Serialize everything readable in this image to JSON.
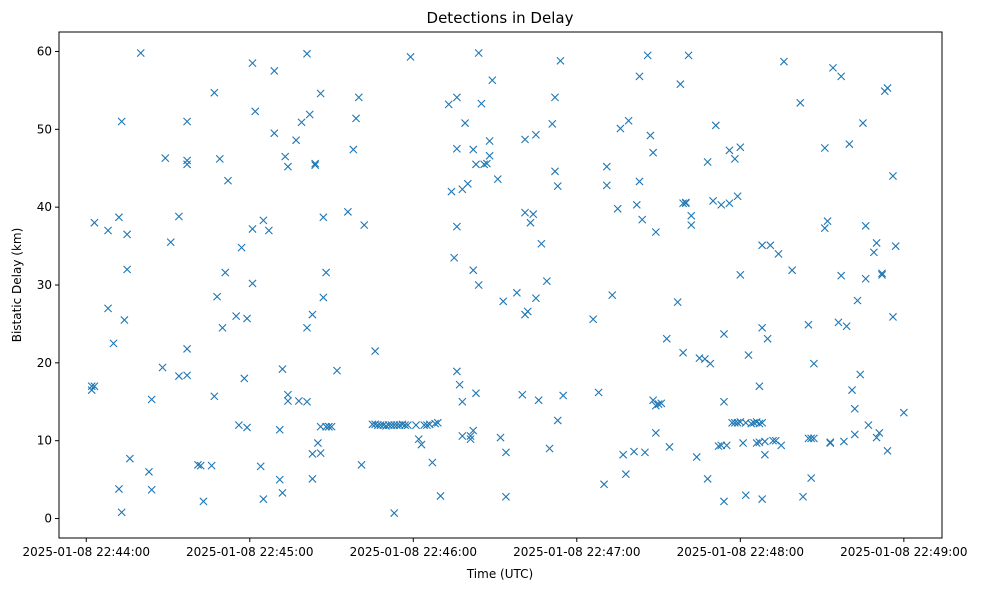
{
  "chart_data": {
    "type": "scatter",
    "title": "Detections in Delay",
    "xlabel": "Time (UTC)",
    "ylabel": "Bistatic Delay (km)",
    "marker": "x",
    "color": "#1f77b4",
    "x_unit": "seconds after 2025-01-08 22:44:00",
    "xlim": [
      -10,
      314
    ],
    "ylim": [
      -2.5,
      62.5
    ],
    "x_ticks": [
      {
        "value": 0,
        "label": "2025-01-08 22:44:00"
      },
      {
        "value": 60,
        "label": "2025-01-08 22:45:00"
      },
      {
        "value": 120,
        "label": "2025-01-08 22:46:00"
      },
      {
        "value": 180,
        "label": "2025-01-08 22:47:00"
      },
      {
        "value": 240,
        "label": "2025-01-08 22:48:00"
      },
      {
        "value": 300,
        "label": "2025-01-08 22:49:00"
      }
    ],
    "y_ticks": [
      {
        "value": 0,
        "label": "0"
      },
      {
        "value": 10,
        "label": "10"
      },
      {
        "value": 20,
        "label": "20"
      },
      {
        "value": 30,
        "label": "30"
      },
      {
        "value": 40,
        "label": "40"
      },
      {
        "value": 50,
        "label": "50"
      },
      {
        "value": 60,
        "label": "60"
      }
    ],
    "points": [
      [
        2,
        17
      ],
      [
        2,
        16.5
      ],
      [
        3,
        17
      ],
      [
        3,
        38
      ],
      [
        8,
        37
      ],
      [
        8,
        27
      ],
      [
        10,
        22.5
      ],
      [
        12,
        38.7
      ],
      [
        12,
        3.8
      ],
      [
        13,
        51
      ],
      [
        13,
        0.8
      ],
      [
        14,
        25.5
      ],
      [
        15,
        36.5
      ],
      [
        15,
        32
      ],
      [
        16,
        7.7
      ],
      [
        20,
        59.8
      ],
      [
        23,
        6
      ],
      [
        24,
        15.3
      ],
      [
        24,
        3.7
      ],
      [
        28,
        19.4
      ],
      [
        29,
        46.3
      ],
      [
        31,
        35.5
      ],
      [
        34,
        38.8
      ],
      [
        34,
        18.3
      ],
      [
        37,
        21.8
      ],
      [
        37,
        18.4
      ],
      [
        37,
        51
      ],
      [
        37,
        46
      ],
      [
        37,
        45.5
      ],
      [
        41,
        6.9
      ],
      [
        42,
        6.8
      ],
      [
        43,
        2.2
      ],
      [
        46,
        6.8
      ],
      [
        47,
        15.7
      ],
      [
        47,
        54.7
      ],
      [
        48,
        28.5
      ],
      [
        49,
        46.2
      ],
      [
        50,
        24.5
      ],
      [
        51,
        31.6
      ],
      [
        52,
        43.4
      ],
      [
        55,
        26
      ],
      [
        56,
        12
      ],
      [
        57,
        34.8
      ],
      [
        58,
        18
      ],
      [
        59,
        11.7
      ],
      [
        59,
        25.7
      ],
      [
        61,
        30.2
      ],
      [
        61,
        58.5
      ],
      [
        61,
        37.2
      ],
      [
        62,
        52.3
      ],
      [
        64,
        6.7
      ],
      [
        65,
        38.3
      ],
      [
        65,
        2.5
      ],
      [
        67,
        37
      ],
      [
        69,
        57.5
      ],
      [
        69,
        49.5
      ],
      [
        71,
        5
      ],
      [
        71,
        11.4
      ],
      [
        72,
        19.2
      ],
      [
        72,
        3.3
      ],
      [
        73,
        46.5
      ],
      [
        74,
        45.2
      ],
      [
        74,
        15.9
      ],
      [
        74,
        15.1
      ],
      [
        77,
        48.6
      ],
      [
        78,
        15.1
      ],
      [
        79,
        50.9
      ],
      [
        81,
        24.5
      ],
      [
        81,
        15
      ],
      [
        81,
        59.7
      ],
      [
        82,
        51.9
      ],
      [
        83,
        26.2
      ],
      [
        83,
        8.3
      ],
      [
        83,
        5.1
      ],
      [
        84,
        45.6
      ],
      [
        84,
        45.4
      ],
      [
        85,
        9.7
      ],
      [
        86,
        54.6
      ],
      [
        86,
        8.4
      ],
      [
        86,
        11.8
      ],
      [
        87,
        38.7
      ],
      [
        87,
        28.4
      ],
      [
        88,
        31.6
      ],
      [
        88,
        11.8
      ],
      [
        89,
        11.8
      ],
      [
        89,
        11.8
      ],
      [
        90,
        11.8
      ],
      [
        92,
        19
      ],
      [
        96,
        39.4
      ],
      [
        98,
        47.4
      ],
      [
        99,
        51.4
      ],
      [
        100,
        54.1
      ],
      [
        101,
        6.9
      ],
      [
        102,
        37.7
      ],
      [
        106,
        21.5
      ],
      [
        105,
        12.1
      ],
      [
        106,
        12.1
      ],
      [
        107,
        12
      ],
      [
        108,
        12
      ],
      [
        109,
        12
      ],
      [
        110,
        11.9
      ],
      [
        111,
        12
      ],
      [
        112,
        12
      ],
      [
        113,
        12
      ],
      [
        113,
        0.7
      ],
      [
        114,
        12
      ],
      [
        115,
        12
      ],
      [
        116,
        12.1
      ],
      [
        117,
        12
      ],
      [
        118,
        12
      ],
      [
        119,
        59.3
      ],
      [
        121,
        12
      ],
      [
        122,
        10.2
      ],
      [
        123,
        9.5
      ],
      [
        124,
        12
      ],
      [
        125,
        12
      ],
      [
        126,
        12.1
      ],
      [
        127,
        7.2
      ],
      [
        128,
        12.2
      ],
      [
        129,
        12.3
      ],
      [
        130,
        2.9
      ],
      [
        133,
        53.2
      ],
      [
        134,
        42
      ],
      [
        135,
        33.5
      ],
      [
        136,
        54.1
      ],
      [
        136,
        47.5
      ],
      [
        136,
        37.5
      ],
      [
        136,
        18.9
      ],
      [
        137,
        17.2
      ],
      [
        138,
        42.3
      ],
      [
        138,
        15
      ],
      [
        138,
        10.6
      ],
      [
        139,
        50.8
      ],
      [
        140,
        43
      ],
      [
        141,
        10.6
      ],
      [
        141,
        10.2
      ],
      [
        142,
        31.9
      ],
      [
        142,
        47.4
      ],
      [
        142,
        11.3
      ],
      [
        143,
        16.1
      ],
      [
        143,
        45.5
      ],
      [
        144,
        59.8
      ],
      [
        144,
        30
      ],
      [
        145,
        53.3
      ],
      [
        146,
        45.5
      ],
      [
        147,
        45.6
      ],
      [
        148,
        48.5
      ],
      [
        148,
        46.6
      ],
      [
        149,
        56.3
      ],
      [
        151,
        43.6
      ],
      [
        152,
        10.4
      ],
      [
        153,
        27.9
      ],
      [
        154,
        8.5
      ],
      [
        154,
        2.8
      ],
      [
        158,
        29
      ],
      [
        160,
        15.9
      ],
      [
        161,
        26.2
      ],
      [
        161,
        48.7
      ],
      [
        161,
        39.3
      ],
      [
        162,
        26.6
      ],
      [
        163,
        38
      ],
      [
        164,
        39.1
      ],
      [
        165,
        49.3
      ],
      [
        165,
        28.3
      ],
      [
        166,
        15.2
      ],
      [
        167,
        35.3
      ],
      [
        169,
        30.5
      ],
      [
        170,
        9
      ],
      [
        171,
        50.7
      ],
      [
        172,
        54.1
      ],
      [
        172,
        44.6
      ],
      [
        173,
        12.6
      ],
      [
        173,
        42.7
      ],
      [
        174,
        58.8
      ],
      [
        175,
        15.8
      ],
      [
        186,
        25.6
      ],
      [
        188,
        16.2
      ],
      [
        190,
        4.4
      ],
      [
        191,
        45.2
      ],
      [
        191,
        42.8
      ],
      [
        193,
        28.7
      ],
      [
        195,
        39.8
      ],
      [
        196,
        50.1
      ],
      [
        197,
        8.2
      ],
      [
        198,
        5.7
      ],
      [
        199,
        51.1
      ],
      [
        201,
        8.6
      ],
      [
        202,
        40.3
      ],
      [
        203,
        56.8
      ],
      [
        203,
        43.3
      ],
      [
        204,
        38.4
      ],
      [
        205,
        8.5
      ],
      [
        206,
        59.5
      ],
      [
        207,
        49.2
      ],
      [
        208,
        47
      ],
      [
        208,
        15.2
      ],
      [
        209,
        36.8
      ],
      [
        209,
        14.5
      ],
      [
        209,
        11
      ],
      [
        210,
        14.7
      ],
      [
        211,
        14.8
      ],
      [
        213,
        23.1
      ],
      [
        214,
        9.2
      ],
      [
        217,
        27.8
      ],
      [
        218,
        55.8
      ],
      [
        219,
        40.5
      ],
      [
        219,
        21.3
      ],
      [
        220,
        40.6
      ],
      [
        220,
        40.5
      ],
      [
        221,
        59.5
      ],
      [
        222,
        38.9
      ],
      [
        222,
        37.7
      ],
      [
        224,
        7.9
      ],
      [
        225,
        20.6
      ],
      [
        227,
        20.5
      ],
      [
        228,
        45.8
      ],
      [
        228,
        5.1
      ],
      [
        229,
        19.9
      ],
      [
        230,
        40.8
      ],
      [
        231,
        50.5
      ],
      [
        232,
        9.3
      ],
      [
        233,
        9.4
      ],
      [
        233,
        40.3
      ],
      [
        234,
        23.7
      ],
      [
        234,
        15
      ],
      [
        234,
        2.2
      ],
      [
        235,
        9.4
      ],
      [
        236,
        40.5
      ],
      [
        236,
        47.3
      ],
      [
        237,
        12.3
      ],
      [
        238,
        46.2
      ],
      [
        238,
        12.3
      ],
      [
        239,
        12.3
      ],
      [
        239,
        41.4
      ],
      [
        240,
        12.4
      ],
      [
        240,
        47.7
      ],
      [
        240,
        31.3
      ],
      [
        241,
        9.7
      ],
      [
        242,
        12.3
      ],
      [
        242,
        3
      ],
      [
        243,
        21
      ],
      [
        244,
        12.2
      ],
      [
        245,
        12.3
      ],
      [
        246,
        12.4
      ],
      [
        246,
        9.7
      ],
      [
        247,
        17
      ],
      [
        247,
        12.2
      ],
      [
        247,
        9.8
      ],
      [
        248,
        12.3
      ],
      [
        248,
        35.1
      ],
      [
        248,
        24.5
      ],
      [
        248,
        2.5
      ],
      [
        249,
        8.2
      ],
      [
        249,
        9.9
      ],
      [
        250,
        23.1
      ],
      [
        251,
        35.1
      ],
      [
        252,
        10
      ],
      [
        253,
        10
      ],
      [
        254,
        34
      ],
      [
        255,
        9.4
      ],
      [
        256,
        58.7
      ],
      [
        259,
        31.9
      ],
      [
        262,
        53.4
      ],
      [
        263,
        2.8
      ],
      [
        265,
        24.9
      ],
      [
        265,
        10.3
      ],
      [
        266,
        10.3
      ],
      [
        266,
        5.2
      ],
      [
        267,
        10.3
      ],
      [
        267,
        19.9
      ],
      [
        271,
        47.6
      ],
      [
        271,
        37.3
      ],
      [
        272,
        38.2
      ],
      [
        273,
        9.8
      ],
      [
        273,
        9.7
      ],
      [
        274,
        57.9
      ],
      [
        277,
        56.8
      ],
      [
        277,
        31.2
      ],
      [
        276,
        25.2
      ],
      [
        278,
        9.9
      ],
      [
        279,
        24.7
      ],
      [
        280,
        48.1
      ],
      [
        281,
        16.5
      ],
      [
        282,
        10.8
      ],
      [
        282,
        14.1
      ],
      [
        283,
        28
      ],
      [
        284,
        18.5
      ],
      [
        285,
        50.8
      ],
      [
        286,
        30.8
      ],
      [
        286,
        37.6
      ],
      [
        287,
        12
      ],
      [
        289,
        34.2
      ],
      [
        290,
        35.4
      ],
      [
        290,
        10.4
      ],
      [
        291,
        11
      ],
      [
        292,
        31.3
      ],
      [
        292,
        31.5
      ],
      [
        293,
        54.9
      ],
      [
        294,
        55.3
      ],
      [
        294,
        8.7
      ],
      [
        296,
        44
      ],
      [
        296,
        25.9
      ],
      [
        297,
        35
      ],
      [
        300,
        13.6
      ]
    ]
  }
}
